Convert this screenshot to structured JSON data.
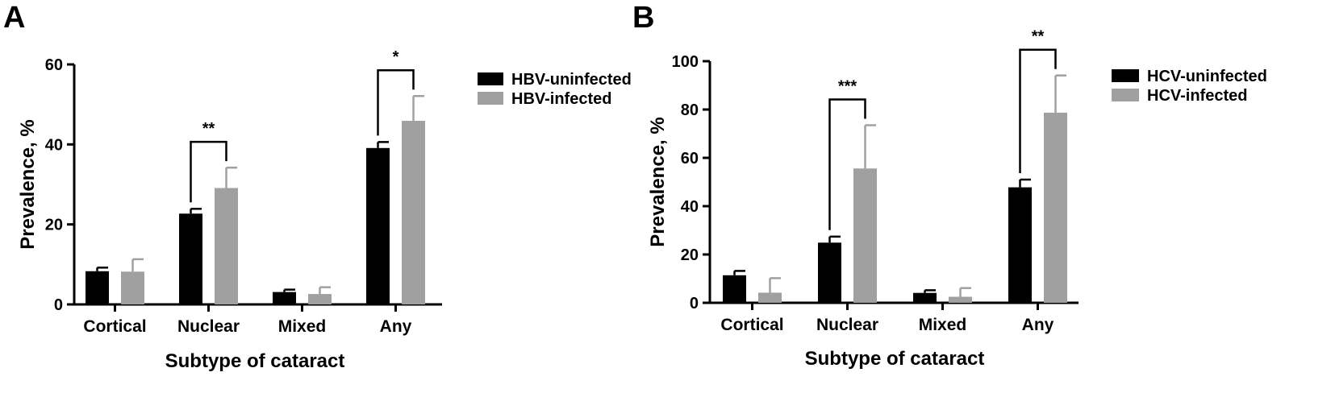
{
  "panels": [
    {
      "letter": "A"
    },
    {
      "letter": "B"
    }
  ],
  "chart_data": [
    {
      "type": "bar",
      "categories": [
        "Cortical",
        "Nuclear",
        "Mixed",
        "Any"
      ],
      "xlabel": "Subtype of cataract",
      "ylabel": "Prevalence, %",
      "ylim": [
        0,
        60
      ],
      "yticks": [
        0,
        20,
        40,
        60
      ],
      "legend_position": "top-right",
      "grid": false,
      "series": [
        {
          "name": "HBV-uninfected",
          "color": "#000000",
          "values": [
            8.3,
            22.7,
            3.1,
            39.1
          ],
          "errors": [
            0.9,
            1.2,
            0.6,
            1.5
          ]
        },
        {
          "name": "HBV-infected",
          "color": "#a0a0a0",
          "values": [
            8.2,
            29.1,
            2.6,
            45.9
          ],
          "errors": [
            3.1,
            5.1,
            1.7,
            6.2
          ]
        }
      ],
      "significance": [
        {
          "category": "Nuclear",
          "label": "**"
        },
        {
          "category": "Any",
          "label": "*"
        }
      ]
    },
    {
      "type": "bar",
      "categories": [
        "Cortical",
        "Nuclear",
        "Mixed",
        "Any"
      ],
      "xlabel": "Subtype of cataract",
      "ylabel": "Prevalence, %",
      "ylim": [
        0,
        100
      ],
      "yticks": [
        0,
        20,
        40,
        60,
        80,
        100
      ],
      "legend_position": "top-right",
      "grid": false,
      "series": [
        {
          "name": "HCV-uninfected",
          "color": "#000000",
          "values": [
            11.4,
            24.9,
            4.1,
            47.8
          ],
          "errors": [
            1.8,
            2.5,
            1.1,
            3.2
          ]
        },
        {
          "name": "HCV-infected",
          "color": "#a0a0a0",
          "values": [
            4.2,
            55.6,
            2.5,
            78.7
          ],
          "errors": [
            6.0,
            17.9,
            3.6,
            15.4
          ]
        }
      ],
      "significance": [
        {
          "category": "Nuclear",
          "label": "***"
        },
        {
          "category": "Any",
          "label": "**"
        }
      ]
    }
  ]
}
